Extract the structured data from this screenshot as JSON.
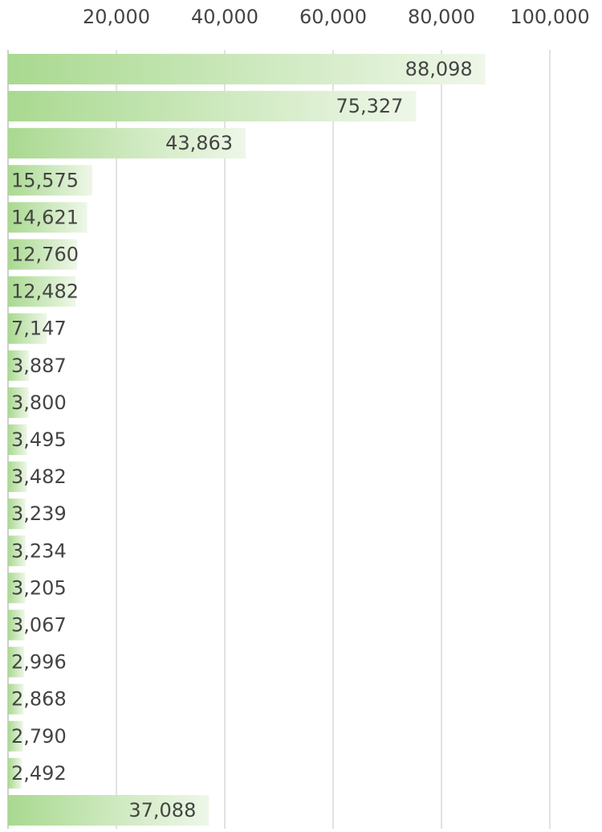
{
  "chart_data": {
    "type": "bar",
    "orientation": "horizontal",
    "values": [
      88098,
      75327,
      43863,
      15575,
      14621,
      12760,
      12482,
      7147,
      3887,
      3800,
      3495,
      3482,
      3239,
      3234,
      3205,
      3067,
      2996,
      2868,
      2790,
      2492,
      37088
    ],
    "value_labels": [
      "88,098",
      "75,327",
      "43,863",
      "15,575",
      "14,621",
      "12,760",
      "12,482",
      "7,147",
      "3,887",
      "3,800",
      "3,495",
      "3,482",
      "3,239",
      "3,234",
      "3,205",
      "3,067",
      "2,996",
      "2,868",
      "2,790",
      "2,492",
      "37,088"
    ],
    "color": "#a9d990",
    "xlim": [
      0,
      100000
    ],
    "xticks": [
      {
        "value": 20000,
        "label": "20,000"
      },
      {
        "value": 40000,
        "label": "40,000"
      },
      {
        "value": 60000,
        "label": "60,000"
      },
      {
        "value": 80000,
        "label": "80,000"
      },
      {
        "value": 100000,
        "label": "100,000"
      }
    ],
    "grid": true
  }
}
